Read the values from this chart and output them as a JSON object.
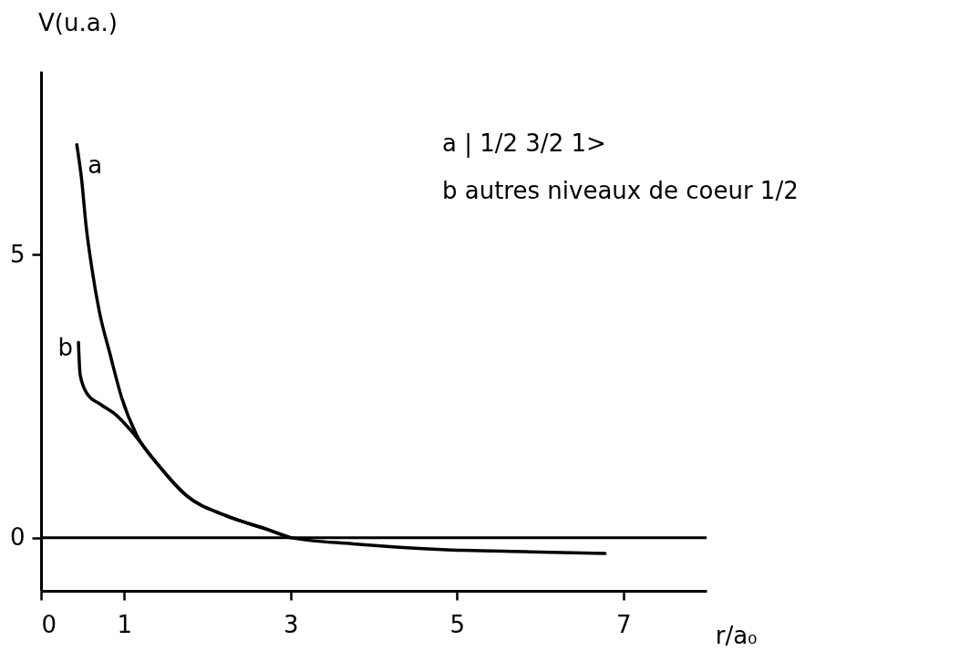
{
  "chart_data": {
    "type": "line",
    "xlabel": "r/a₀",
    "ylabel": "V(u.a.)",
    "xlim": [
      0,
      8
    ],
    "ylim": [
      -0.94,
      8.24
    ],
    "xticks": [
      0,
      1,
      3,
      5,
      7
    ],
    "yticks": [
      0,
      5
    ],
    "grid": false,
    "legend": false,
    "marker": "none",
    "line_style": "solid",
    "ref_lines": [
      {
        "axis": "y",
        "value": 0,
        "color": "#000000"
      }
    ],
    "annotations": [
      "a | 1/2  3/2  1>",
      "b  autres niveaux de coeur 1/2"
    ],
    "series": [
      {
        "name": "a",
        "color": "#000000",
        "x": [
          0.43,
          0.49,
          0.54,
          0.61,
          0.7,
          0.83,
          0.97,
          1.15,
          1.4,
          1.75,
          2.22,
          2.75,
          3.0,
          3.75,
          4.82,
          5.88,
          6.78
        ],
        "values": [
          6.94,
          6.3,
          5.53,
          4.77,
          4.0,
          3.24,
          2.47,
          1.81,
          1.3,
          0.74,
          0.39,
          0.13,
          0,
          -0.11,
          -0.21,
          -0.25,
          -0.28
        ]
      },
      {
        "name": "b",
        "color": "#000000",
        "x": [
          0.45,
          0.47,
          0.56,
          0.72,
          0.9,
          1.07,
          1.4,
          1.75,
          2.22,
          2.75,
          3.0
        ],
        "values": [
          3.45,
          2.88,
          2.53,
          2.35,
          2.17,
          1.91,
          1.3,
          0.74,
          0.39,
          0.13,
          0
        ]
      }
    ]
  }
}
